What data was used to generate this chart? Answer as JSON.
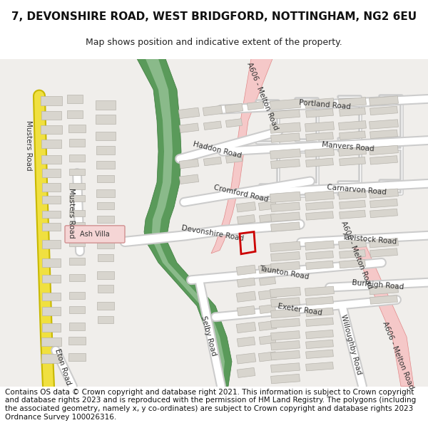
{
  "title": "7, DEVONSHIRE ROAD, WEST BRIDGFORD, NOTTINGHAM, NG2 6EU",
  "subtitle": "Map shows position and indicative extent of the property.",
  "copyright_text": "Contains OS data © Crown copyright and database right 2021. This information is subject to Crown copyright and database rights 2023 and is reproduced with the permission of HM Land Registry. The polygons (including the associated geometry, namely x, y co-ordinates) are subject to Crown copyright and database rights 2023 Ordnance Survey 100026316.",
  "map_bg": "#f0eeeb",
  "road_color": "#ffffff",
  "road_border": "#cccccc",
  "major_road_fill": "#f5c8c8",
  "major_road_border": "#e08888",
  "yellow_fill": "#f0e040",
  "yellow_border": "#c8b800",
  "green_dark": "#5a9a5a",
  "green_mid": "#6ab06a",
  "green_light": "#8aba8a",
  "building_fill": "#d8d5ce",
  "building_border": "#b8b5ae",
  "ash_villa_fill": "#f5d5d5",
  "ash_villa_border": "#d09090",
  "property_border": "#cc0000",
  "text_color": "#333333",
  "title_fontsize": 11,
  "subtitle_fontsize": 9,
  "copyright_fontsize": 7.5
}
